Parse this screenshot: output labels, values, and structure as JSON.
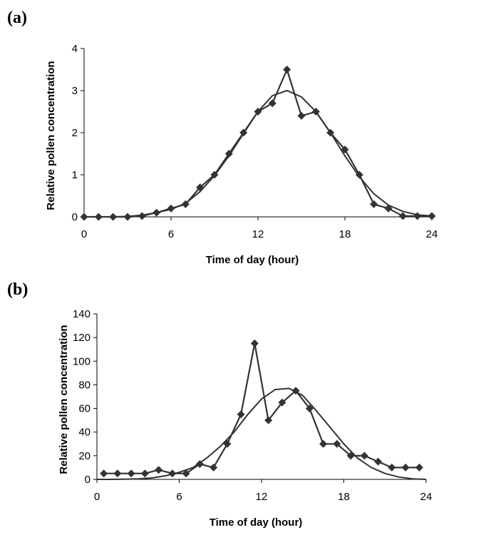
{
  "chart_data": [
    {
      "type": "line",
      "panel_label": "(a)",
      "xlabel": "Time of day (hour)",
      "ylabel": "Relative pollen concentration",
      "xlim": [
        0,
        24
      ],
      "ylim": [
        0,
        4
      ],
      "xticks": [
        0,
        6,
        12,
        18,
        24
      ],
      "yticks": [
        0,
        1,
        2,
        3,
        4
      ],
      "series": [
        {
          "marker": "diamond",
          "color": "#333333",
          "x": [
            0,
            1,
            2,
            3,
            4,
            5,
            6,
            7,
            8,
            9,
            10,
            11,
            12,
            13,
            14,
            15,
            16,
            17,
            18,
            19,
            20,
            21,
            22,
            23,
            24
          ],
          "y": [
            0,
            0,
            0,
            0,
            0.02,
            0.1,
            0.2,
            0.3,
            0.7,
            1.0,
            1.5,
            2.0,
            2.5,
            2.7,
            3.5,
            2.4,
            2.5,
            2.0,
            1.6,
            1.0,
            0.3,
            0.2,
            0.02,
            0.02,
            0.02
          ]
        },
        {
          "marker": "none",
          "color": "#333333",
          "x": [
            0,
            1,
            2,
            3,
            4,
            5,
            6,
            7,
            8,
            9,
            10,
            11,
            12,
            13,
            14,
            15,
            16,
            17,
            18,
            19,
            20,
            21,
            22,
            23,
            24
          ],
          "y": [
            0,
            0,
            0,
            0.01,
            0.04,
            0.1,
            0.18,
            0.32,
            0.6,
            0.98,
            1.45,
            1.98,
            2.5,
            2.88,
            3.0,
            2.85,
            2.5,
            2.0,
            1.45,
            0.95,
            0.55,
            0.28,
            0.13,
            0.05,
            0.02
          ]
        }
      ]
    },
    {
      "type": "line",
      "panel_label": "(b)",
      "xlabel": "Time of day (hour)",
      "ylabel": "Relative pollen concentration",
      "xlim": [
        0,
        24
      ],
      "ylim": [
        0,
        140
      ],
      "xticks": [
        0,
        6,
        12,
        18,
        24
      ],
      "yticks": [
        0,
        20,
        40,
        60,
        80,
        100,
        120,
        140
      ],
      "series": [
        {
          "marker": "diamond",
          "color": "#333333",
          "x": [
            0.5,
            1.5,
            2.5,
            3.5,
            4.5,
            5.5,
            6.5,
            7.5,
            8.5,
            9.5,
            10.5,
            11.5,
            12.5,
            13.5,
            14.5,
            15.5,
            16.5,
            17.5,
            18.5,
            19.5,
            20.5,
            21.5,
            22.5,
            23.5
          ],
          "y": [
            5,
            5,
            5,
            5,
            8,
            5,
            5,
            13,
            10,
            30,
            55,
            115,
            50,
            65,
            75,
            60,
            30,
            30,
            20,
            20,
            15,
            10,
            10,
            10
          ]
        },
        {
          "marker": "none",
          "color": "#333333",
          "x": [
            0,
            1,
            2,
            3,
            4,
            5,
            6,
            7,
            8,
            9,
            10,
            11,
            12,
            13,
            14,
            15,
            16,
            17,
            18,
            19,
            20,
            21,
            22,
            23,
            24
          ],
          "y": [
            0,
            0,
            0.2,
            0.5,
            1.2,
            3,
            6,
            10,
            18,
            28,
            40,
            55,
            68,
            76,
            77,
            71,
            58,
            44,
            30,
            18,
            10,
            5,
            2,
            0.5,
            0
          ]
        }
      ]
    }
  ]
}
